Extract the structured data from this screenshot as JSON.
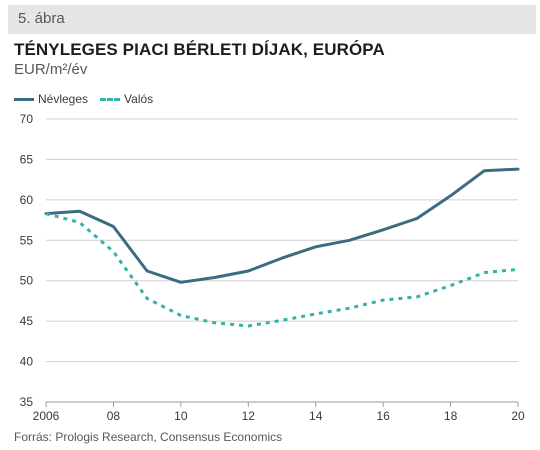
{
  "figure_label": "5. ábra",
  "source": "Forrás: Prologis Research, Consensus Economics",
  "chart_data": {
    "type": "line",
    "title": "TÉNYLEGES PIACI BÉRLETI DÍJAK, EURÓPA",
    "ylabel": "EUR/m²/év",
    "xlabel": "",
    "xlim": [
      2006,
      2020
    ],
    "ylim": [
      35,
      70
    ],
    "yticks": [
      35,
      40,
      45,
      50,
      55,
      60,
      65,
      70
    ],
    "xticks": [
      2006,
      2008,
      2010,
      2012,
      2014,
      2016,
      2018,
      2020
    ],
    "xtick_labels": [
      "2006",
      "08",
      "10",
      "12",
      "14",
      "16",
      "18",
      "20"
    ],
    "grid": "horizontal",
    "legend": "top-left",
    "series": [
      {
        "name": "Névleges",
        "style": "solid",
        "color": "#3a6d80",
        "x": [
          2006,
          2007,
          2008,
          2009,
          2010,
          2011,
          2012,
          2013,
          2014,
          2015,
          2016,
          2017,
          2018,
          2019,
          2020
        ],
        "values": [
          58.3,
          58.6,
          56.7,
          51.2,
          49.8,
          50.4,
          51.2,
          52.8,
          54.2,
          55.0,
          56.3,
          57.7,
          60.5,
          63.6,
          63.8
        ]
      },
      {
        "name": "Valós",
        "style": "dashed",
        "color": "#33b3a6",
        "x": [
          2006,
          2007,
          2008,
          2009,
          2010,
          2011,
          2012,
          2013,
          2014,
          2015,
          2016,
          2017,
          2018,
          2019,
          2020
        ],
        "values": [
          58.3,
          57.2,
          53.6,
          47.8,
          45.7,
          44.8,
          44.4,
          45.1,
          45.9,
          46.6,
          47.6,
          48.0,
          49.4,
          51.0,
          51.4
        ]
      }
    ]
  }
}
